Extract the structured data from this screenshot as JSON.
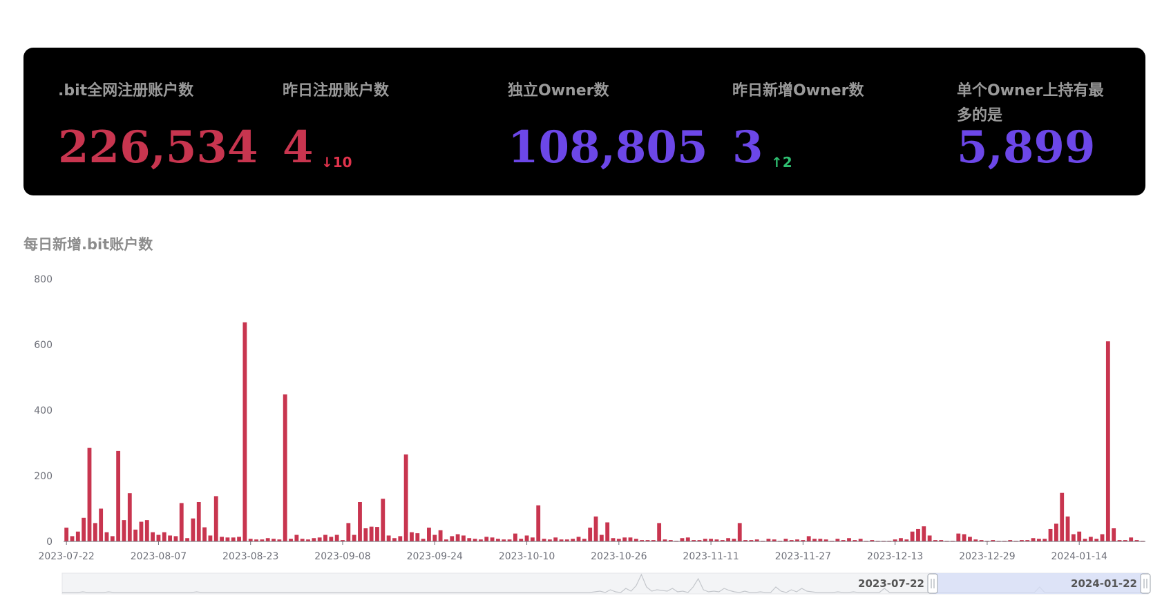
{
  "stats": [
    {
      "label": ".bit全网注册账户数",
      "value": "226,534",
      "color": "#c8354f"
    },
    {
      "label": "昨日注册账户数",
      "value": "4",
      "color": "#c8354f",
      "delta": "↓10",
      "delta_color": "#e0334c"
    },
    {
      "label": "独立Owner数",
      "value": "108,805",
      "color": "#6c47e8"
    },
    {
      "label": "昨日新增Owner数",
      "value": "3",
      "color": "#6c47e8",
      "delta": "↑2",
      "delta_color": "#2fbf71"
    },
    {
      "label": "单个Owner上持有最多的是",
      "value": "5,899",
      "color": "#6c47e8"
    }
  ],
  "chart_title": "每日新增.bit账户数",
  "chart_data": {
    "type": "bar",
    "title": "每日新增.bit账户数",
    "bar_color": "#c8354f",
    "ylim": [
      0,
      800
    ],
    "yticks": [
      0,
      200,
      400,
      600,
      800
    ],
    "start_date": "2023-07-22",
    "xtick_labels": [
      "2023-07-22",
      "2023-08-07",
      "2023-08-23",
      "2023-09-08",
      "2023-09-24",
      "2023-10-10",
      "2023-10-26",
      "2023-11-11",
      "2023-11-27",
      "2023-12-13",
      "2023-12-29",
      "2024-01-14"
    ],
    "values": [
      42,
      16,
      30,
      72,
      285,
      56,
      100,
      28,
      16,
      276,
      65,
      147,
      36,
      60,
      65,
      28,
      20,
      28,
      18,
      16,
      117,
      10,
      70,
      120,
      43,
      18,
      138,
      14,
      12,
      12,
      14,
      668,
      8,
      6,
      6,
      10,
      8,
      6,
      448,
      8,
      20,
      8,
      6,
      10,
      12,
      20,
      14,
      20,
      4,
      56,
      20,
      120,
      40,
      45,
      44,
      130,
      18,
      10,
      16,
      265,
      28,
      25,
      8,
      42,
      20,
      34,
      6,
      16,
      22,
      18,
      10,
      8,
      6,
      14,
      12,
      8,
      6,
      6,
      24,
      8,
      18,
      12,
      110,
      8,
      6,
      12,
      6,
      6,
      8,
      14,
      8,
      42,
      76,
      20,
      58,
      10,
      8,
      12,
      12,
      8,
      4,
      4,
      4,
      56,
      6,
      4,
      2,
      10,
      12,
      4,
      4,
      8,
      8,
      6,
      4,
      10,
      8,
      56,
      4,
      4,
      6,
      2,
      8,
      6,
      2,
      8,
      4,
      6,
      4,
      16,
      8,
      8,
      6,
      2,
      8,
      4,
      10,
      4,
      8,
      2,
      4,
      2,
      2,
      2,
      6,
      10,
      6,
      30,
      38,
      46,
      18,
      4,
      4,
      2,
      2,
      24,
      22,
      14,
      6,
      4,
      2,
      4,
      2,
      2,
      4,
      2,
      4,
      4,
      10,
      8,
      8,
      38,
      54,
      148,
      76,
      22,
      30,
      8,
      14,
      8,
      22,
      610,
      40,
      4,
      4,
      12,
      4,
      2
    ]
  },
  "datazoom": {
    "start_label": "2023-07-22",
    "end_label": "2024-01-22"
  }
}
